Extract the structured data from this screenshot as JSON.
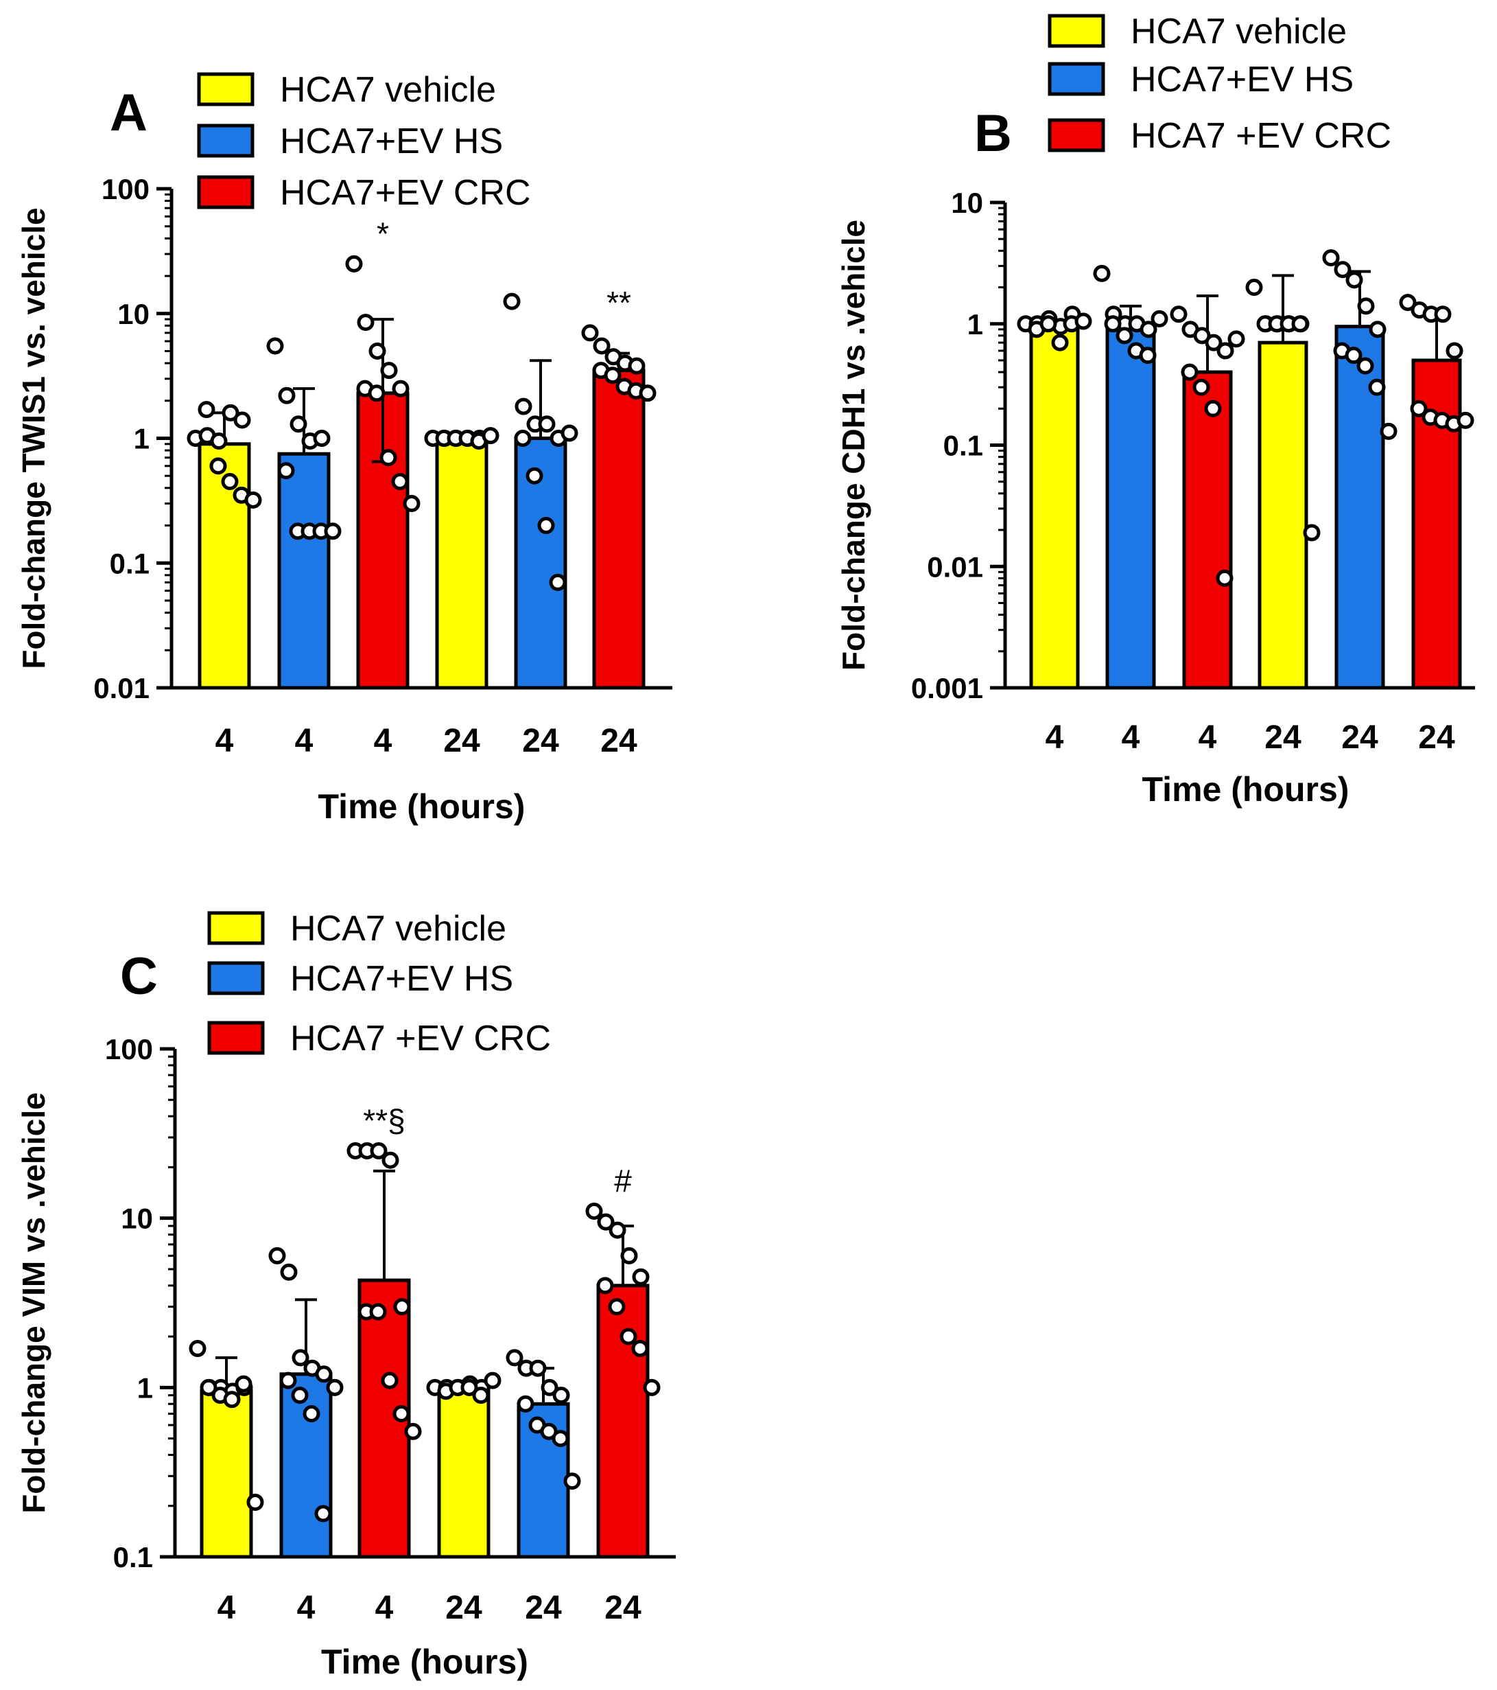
{
  "colors": {
    "yellow": "#FFFF00",
    "blue": "#1E78E6",
    "red": "#F00000"
  },
  "chart_data": [
    {
      "panel": "A",
      "type": "bar",
      "yscale": "log",
      "ylim": [
        0.01,
        100
      ],
      "yticks": [
        {
          "v": 100,
          "label": "100"
        },
        {
          "v": 10,
          "label": "10"
        },
        {
          "v": 1,
          "label": "1"
        },
        {
          "v": 0.1,
          "label": "0.1"
        },
        {
          "v": 0.01,
          "label": "0.01"
        }
      ],
      "ylabel": "Fold-change TWIS1 vs. vehicle",
      "xlabel": "Time (hours)",
      "legend": [
        {
          "label": "HCA7 vehicle",
          "color": "yellow"
        },
        {
          "label": "HCA7+EV HS",
          "color": "blue"
        },
        {
          "label": "HCA7+EV CRC",
          "color": "red"
        }
      ],
      "bars": [
        {
          "x": "4",
          "color": "yellow",
          "value": 0.9,
          "err_hi": 1.6,
          "err_lo": null,
          "annotation": "",
          "points": [
            1.0,
            1.05,
            0.95,
            1.6,
            1.4,
            1.7,
            0.6,
            0.45,
            0.35,
            0.32
          ]
        },
        {
          "x": "4",
          "color": "blue",
          "value": 0.75,
          "err_hi": 2.5,
          "err_lo": null,
          "annotation": "",
          "points": [
            5.5,
            2.2,
            1.3,
            0.95,
            1.0,
            0.55,
            0.18,
            0.18,
            0.18,
            0.18
          ]
        },
        {
          "x": "4",
          "color": "red",
          "value": 2.3,
          "err_hi": 9.0,
          "err_lo": 0.65,
          "annotation": "*",
          "points": [
            25,
            8.5,
            5.0,
            3.5,
            2.5,
            2.5,
            2.3,
            0.7,
            0.45,
            0.3
          ]
        },
        {
          "x": "24",
          "color": "yellow",
          "value": 1.0,
          "err_hi": 1.05,
          "err_lo": null,
          "annotation": "",
          "points": [
            1.0,
            1.0,
            1.0,
            1.0,
            1.0,
            1.0,
            1.0,
            1.0,
            0.95,
            1.05
          ]
        },
        {
          "x": "24",
          "color": "blue",
          "value": 1.0,
          "err_hi": 4.2,
          "err_lo": null,
          "annotation": "",
          "points": [
            12.5,
            1.8,
            1.3,
            1.3,
            1.0,
            1.0,
            0.5,
            0.2,
            0.07,
            1.1
          ]
        },
        {
          "x": "24",
          "color": "red",
          "value": 3.5,
          "err_hi": 4.8,
          "err_lo": null,
          "annotation": "**",
          "points": [
            7.0,
            5.5,
            4.5,
            4.0,
            3.8,
            3.5,
            3.2,
            2.6,
            2.4,
            2.3
          ]
        }
      ]
    },
    {
      "panel": "B",
      "type": "bar",
      "yscale": "log",
      "ylim": [
        0.001,
        10
      ],
      "yticks": [
        {
          "v": 10,
          "label": "10"
        },
        {
          "v": 1,
          "label": "1"
        },
        {
          "v": 0.1,
          "label": "0.1"
        },
        {
          "v": 0.01,
          "label": "0.01"
        },
        {
          "v": 0.001,
          "label": "0.001"
        }
      ],
      "ylabel": "Fold-change CDH1 vs .vehicle",
      "xlabel": "Time (hours)",
      "legend": [
        {
          "label": "HCA7 vehicle",
          "color": "yellow"
        },
        {
          "label": "HCA7+EV HS",
          "color": "blue"
        },
        {
          "label": "HCA7 +EV CRC",
          "color": "red"
        }
      ],
      "bars": [
        {
          "x": "4",
          "color": "yellow",
          "value": 0.95,
          "err_hi": 1.05,
          "err_lo": null,
          "annotation": "",
          "points": [
            1.0,
            1.0,
            1.1,
            0.95,
            1.2,
            0.9,
            1.0,
            0.7,
            1.0,
            1.05
          ]
        },
        {
          "x": "4",
          "color": "blue",
          "value": 0.95,
          "err_hi": 1.4,
          "err_lo": null,
          "annotation": "",
          "points": [
            2.6,
            1.2,
            1.0,
            1.0,
            0.9,
            1.0,
            0.8,
            0.6,
            0.55,
            1.1
          ]
        },
        {
          "x": "4",
          "color": "red",
          "value": 0.4,
          "err_hi": 1.7,
          "err_lo": null,
          "annotation": "",
          "points": [
            1.2,
            0.9,
            0.8,
            0.7,
            0.6,
            0.4,
            0.3,
            0.2,
            0.008,
            0.75
          ]
        },
        {
          "x": "24",
          "color": "yellow",
          "value": 0.7,
          "err_hi": 2.5,
          "err_lo": null,
          "annotation": "",
          "points": [
            2.0,
            1.0,
            1.0,
            1.0,
            1.0,
            1.0,
            1.0,
            1.0,
            1.0,
            0.019
          ]
        },
        {
          "x": "24",
          "color": "blue",
          "value": 0.95,
          "err_hi": 2.7,
          "err_lo": null,
          "annotation": "",
          "points": [
            3.5,
            2.8,
            2.3,
            1.4,
            0.9,
            0.6,
            0.55,
            0.45,
            0.3,
            0.13
          ]
        },
        {
          "x": "24",
          "color": "red",
          "value": 0.5,
          "err_hi": 1.3,
          "err_lo": null,
          "annotation": "",
          "points": [
            1.5,
            1.3,
            1.2,
            1.2,
            0.6,
            0.2,
            0.17,
            0.16,
            0.15,
            0.16
          ]
        }
      ]
    },
    {
      "panel": "C",
      "type": "bar",
      "yscale": "log",
      "ylim": [
        0.1,
        100
      ],
      "yticks": [
        {
          "v": 100,
          "label": "100"
        },
        {
          "v": 10,
          "label": "10"
        },
        {
          "v": 1,
          "label": "1"
        },
        {
          "v": 0.1,
          "label": "0.1"
        }
      ],
      "ylabel": "Fold-change VIM vs .vehicle",
      "xlabel": "Time (hours)",
      "legend": [
        {
          "label": "HCA7 vehicle",
          "color": "yellow"
        },
        {
          "label": "HCA7+EV HS",
          "color": "blue"
        },
        {
          "label": "HCA7 +EV CRC",
          "color": "red"
        }
      ],
      "bars": [
        {
          "x": "4",
          "color": "yellow",
          "value": 0.95,
          "err_hi": 1.5,
          "err_lo": null,
          "annotation": "",
          "points": [
            1.7,
            1.0,
            1.0,
            0.95,
            1.0,
            1.0,
            0.9,
            0.85,
            1.05,
            0.21
          ]
        },
        {
          "x": "4",
          "color": "blue",
          "value": 1.2,
          "err_hi": 3.3,
          "err_lo": null,
          "annotation": "",
          "points": [
            6.0,
            4.8,
            1.5,
            1.3,
            1.2,
            1.1,
            0.9,
            0.7,
            0.18,
            1.0
          ]
        },
        {
          "x": "4",
          "color": "red",
          "value": 4.3,
          "err_hi": 19.0,
          "err_lo": null,
          "annotation": "**§",
          "points": [
            25,
            25,
            25,
            22,
            3.0,
            2.8,
            2.8,
            1.1,
            0.7,
            0.55
          ]
        },
        {
          "x": "24",
          "color": "yellow",
          "value": 1.0,
          "err_hi": 1.05,
          "err_lo": null,
          "annotation": "",
          "points": [
            1.0,
            1.0,
            1.0,
            1.05,
            1.0,
            0.95,
            1.0,
            1.0,
            0.9,
            1.1
          ]
        },
        {
          "x": "24",
          "color": "blue",
          "value": 0.8,
          "err_hi": 1.3,
          "err_lo": null,
          "annotation": "",
          "points": [
            1.5,
            1.3,
            1.3,
            1.0,
            0.9,
            0.8,
            0.6,
            0.55,
            0.5,
            0.28
          ]
        },
        {
          "x": "24",
          "color": "red",
          "value": 4.0,
          "err_hi": 9.0,
          "err_lo": null,
          "annotation": "#",
          "points": [
            11,
            9.5,
            8.5,
            6.0,
            4.5,
            4.0,
            3.0,
            2.0,
            1.7,
            1.0
          ]
        }
      ]
    }
  ]
}
